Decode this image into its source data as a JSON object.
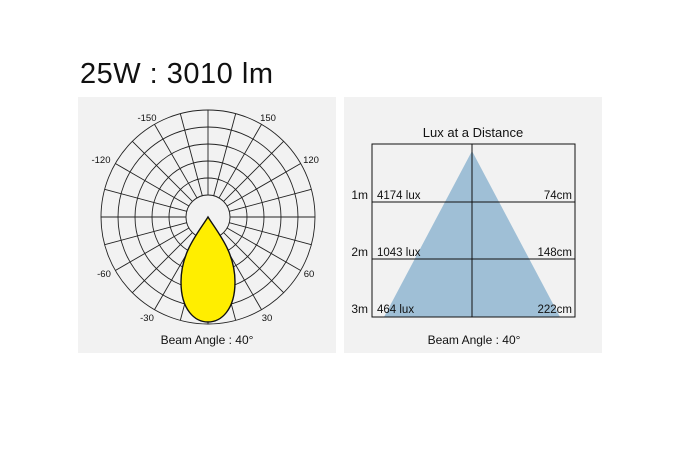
{
  "title": "25W : 3010 lm",
  "polar": {
    "angle_labels": {
      "top_left": "-150",
      "top_right": "150",
      "upper_left": "-120",
      "upper_right": "120",
      "lower_left": "-60",
      "lower_right": "60",
      "bottom_left": "-30",
      "bottom_right": "30"
    },
    "beam_label": "Beam Angle : 40°",
    "beam_color": "#ffee00"
  },
  "lux": {
    "title": "Lux at a Distance",
    "beam_label": "Beam Angle : 40°",
    "cone_color": "#9fbfd6",
    "rows": [
      {
        "distance": "1m",
        "lux": "4174 lux",
        "diameter": "74cm"
      },
      {
        "distance": "2m",
        "lux": "1043 lux",
        "diameter": "148cm"
      },
      {
        "distance": "3m",
        "lux": "464 lux",
        "diameter": "222cm"
      }
    ]
  }
}
